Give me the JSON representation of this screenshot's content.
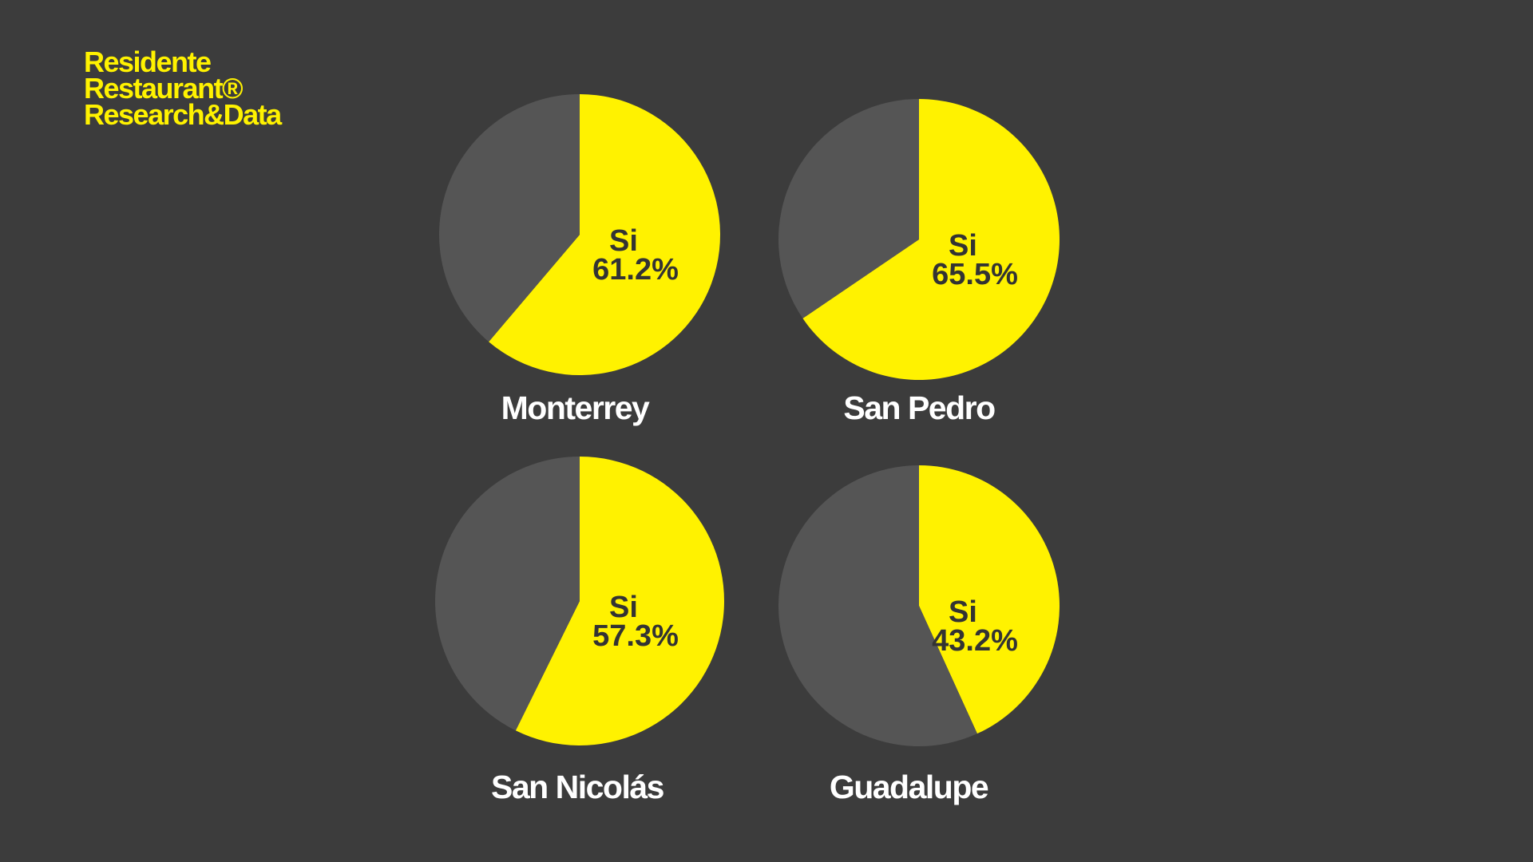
{
  "brand": {
    "lines": [
      "Residente",
      "Restaurant®",
      "Research&Data"
    ]
  },
  "chart_data": [
    {
      "type": "pie",
      "title": "Monterrey",
      "categories": [
        "Si",
        null
      ],
      "values": [
        61.2,
        38.8
      ],
      "value_labels": [
        "61.2%",
        null
      ],
      "colors": [
        "#fff200",
        "#555555"
      ]
    },
    {
      "type": "pie",
      "title": "San Pedro",
      "categories": [
        "Si",
        null
      ],
      "values": [
        65.5,
        34.5
      ],
      "value_labels": [
        "65.5%",
        null
      ],
      "colors": [
        "#fff200",
        "#555555"
      ]
    },
    {
      "type": "pie",
      "title": "San Nicolás",
      "categories": [
        "Si",
        null
      ],
      "values": [
        57.3,
        42.7
      ],
      "value_labels": [
        "57.3%",
        null
      ],
      "colors": [
        "#fff200",
        "#555555"
      ]
    },
    {
      "type": "pie",
      "title": "Guadalupe",
      "categories": [
        "Si",
        null
      ],
      "values": [
        43.2,
        56.8
      ],
      "value_labels": [
        "43.2%",
        null
      ],
      "colors": [
        "#fff200",
        "#555555"
      ]
    }
  ]
}
